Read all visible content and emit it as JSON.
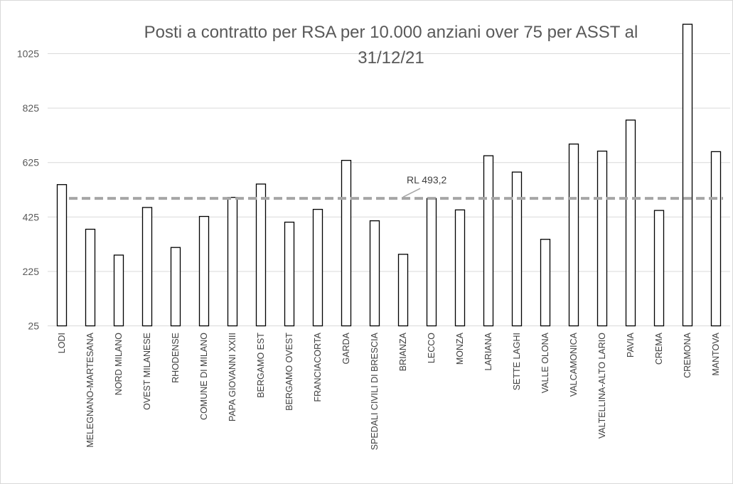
{
  "chart_data": {
    "type": "bar",
    "title_line1": "Posti a contratto per RSA  per 10.000 anziani over 75 per ASST al",
    "title_line2": "31/12/21",
    "categories": [
      "LODI",
      "MELEGNANO-MARTESANA",
      "NORD MILANO",
      "OVEST MILANESE",
      "RHODENSE",
      "COMUNE DI MILANO",
      "PAPA GIOVANNI XXIII",
      "BERGAMO EST",
      "BERGAMO OVEST",
      "FRANCIACORTA",
      "GARDA",
      "SPEDALI CIVILI DI BRESCIA",
      "BRIANZA",
      "LECCO",
      "MONZA",
      "LARIANA",
      "SETTE LAGHI",
      "VALLE OLONA",
      "VALCAMONICA",
      "VALTELLINA-ALTO LARIO",
      "PAVIA",
      "CREMA",
      "CREMONA",
      "MANTOVA"
    ],
    "values": [
      544,
      380,
      285,
      460,
      313,
      427,
      497,
      546,
      406,
      453,
      633,
      411,
      288,
      493,
      451,
      650,
      590,
      343,
      693,
      667,
      781,
      449,
      1133,
      665
    ],
    "yticks": [
      25,
      225,
      425,
      625,
      825,
      1025
    ],
    "ylim": [
      25,
      1150
    ],
    "reference_line": {
      "value": 493.2,
      "label": "RL 493,2",
      "color": "#a6a6a6"
    },
    "bar_fill": "#ffffff",
    "bar_stroke": "#000000",
    "grid": true,
    "legend": "none"
  }
}
